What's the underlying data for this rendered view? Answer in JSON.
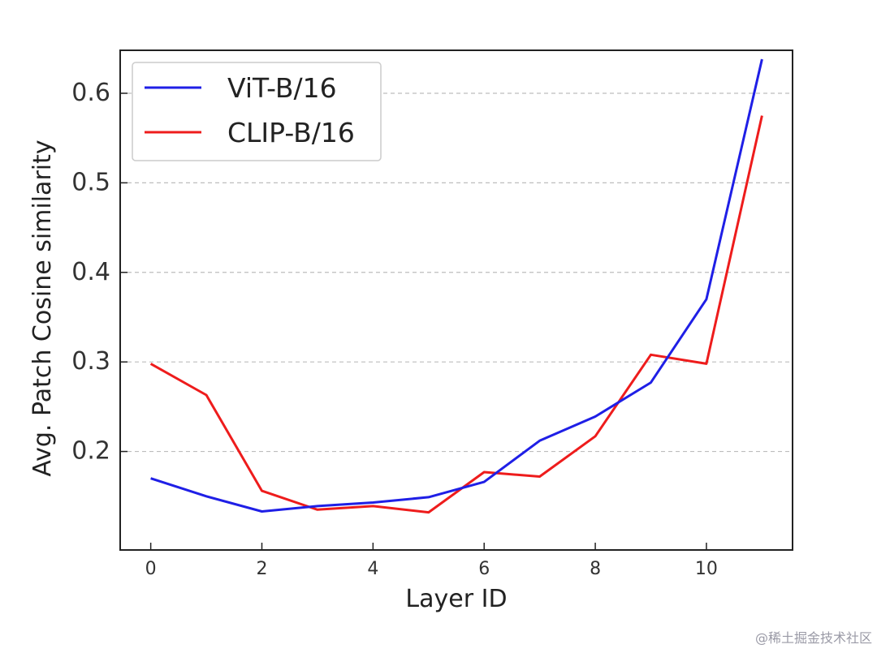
{
  "chart_data": {
    "type": "line",
    "title": "",
    "xlabel": "Layer ID",
    "ylabel": "Avg. Patch Cosine similarity",
    "xlim": [
      -0.55,
      11.55
    ],
    "ylim": [
      0.09,
      0.648
    ],
    "x_ticks": [
      0,
      2,
      4,
      6,
      8,
      10
    ],
    "y_ticks": [
      0.2,
      0.3,
      0.4,
      0.5,
      0.6
    ],
    "x_tick_labels": [
      "0",
      "2",
      "4",
      "6",
      "8",
      "10"
    ],
    "y_tick_labels": [
      "0.2",
      "0.3",
      "0.4",
      "0.5",
      "0.6"
    ],
    "grid": "horizontal dashed",
    "legend_position": "top-left",
    "x": [
      0,
      1,
      2,
      3,
      4,
      5,
      6,
      7,
      8,
      9,
      10,
      11
    ],
    "series": [
      {
        "name": "ViT-B/16",
        "color": "#1f1fe6",
        "values": [
          0.17,
          0.15,
          0.133,
          0.139,
          0.143,
          0.149,
          0.166,
          0.212,
          0.239,
          0.277,
          0.37,
          0.638
        ]
      },
      {
        "name": "CLIP-B/16",
        "color": "#ee1c1c",
        "values": [
          0.298,
          0.263,
          0.156,
          0.135,
          0.139,
          0.132,
          0.177,
          0.172,
          0.217,
          0.308,
          0.298,
          0.575
        ]
      }
    ]
  },
  "watermark": "@稀土掘金技术社区"
}
